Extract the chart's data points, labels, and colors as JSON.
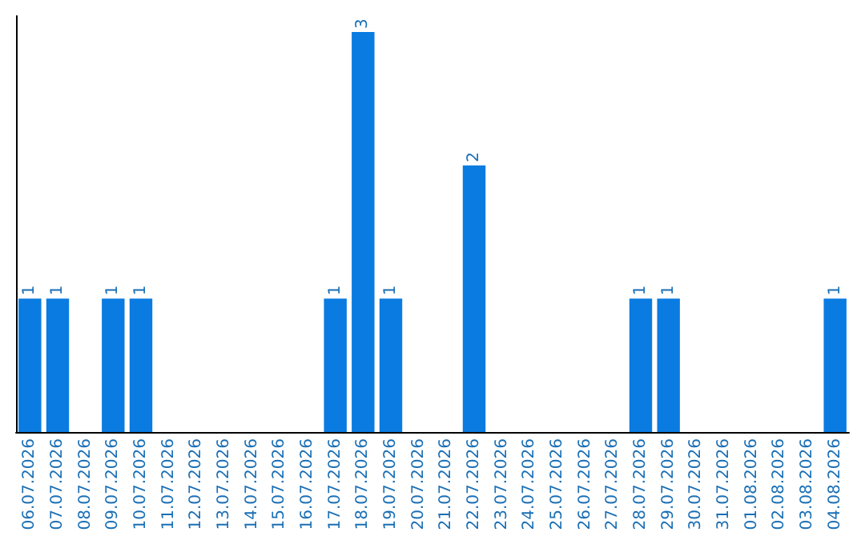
{
  "chart_data": {
    "type": "bar",
    "categories": [
      "06.07.2026",
      "07.07.2026",
      "08.07.2026",
      "09.07.2026",
      "10.07.2026",
      "11.07.2026",
      "12.07.2026",
      "13.07.2026",
      "14.07.2026",
      "15.07.2026",
      "16.07.2026",
      "17.07.2026",
      "18.07.2026",
      "19.07.2026",
      "20.07.2026",
      "21.07.2026",
      "22.07.2026",
      "23.07.2026",
      "24.07.2026",
      "25.07.2026",
      "26.07.2026",
      "27.07.2026",
      "28.07.2026",
      "29.07.2026",
      "30.07.2026",
      "31.07.2026",
      "01.08.2026",
      "02.08.2026",
      "03.08.2026",
      "04.08.2026"
    ],
    "values": [
      1,
      1,
      0,
      1,
      1,
      0,
      0,
      0,
      0,
      0,
      0,
      1,
      3,
      1,
      0,
      0,
      2,
      0,
      0,
      0,
      0,
      0,
      1,
      1,
      0,
      0,
      0,
      0,
      0,
      1
    ],
    "value_labels": [
      "1",
      "1",
      null,
      "1",
      "1",
      null,
      null,
      null,
      null,
      null,
      null,
      "1",
      "3",
      "1",
      null,
      null,
      "2",
      null,
      null,
      null,
      null,
      null,
      "1",
      "1",
      null,
      null,
      null,
      null,
      null,
      "1"
    ],
    "color": "#0a7be0",
    "tick_labels": "x"
  }
}
